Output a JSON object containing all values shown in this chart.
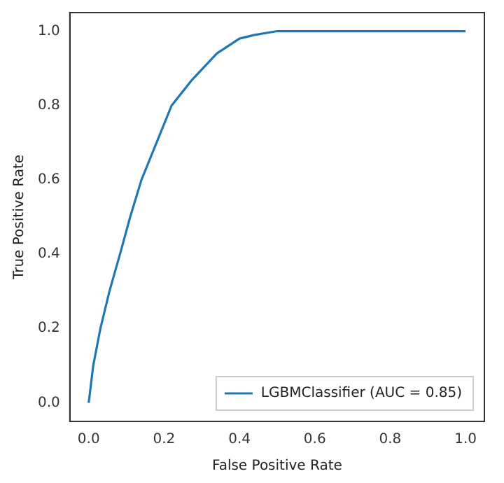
{
  "chart_data": {
    "type": "line",
    "xlabel": "False Positive Rate",
    "ylabel": "True Positive Rate",
    "xlim": [
      -0.05,
      1.05
    ],
    "ylim": [
      -0.05,
      1.05
    ],
    "xticks": [
      {
        "value": 0,
        "label": "0.0"
      },
      0.2,
      0.4,
      0.6,
      0.8,
      {
        "value": 1,
        "label": "1.0"
      }
    ],
    "yticks": [
      {
        "value": 0,
        "label": "0.0"
      },
      0.2,
      0.4,
      0.6,
      0.8,
      {
        "value": 1,
        "label": "1.0"
      }
    ],
    "grid": false,
    "legend": "bottom right",
    "marker": "none",
    "line_style": "solid",
    "series": [
      {
        "name": "LGBMClassifier (AUC = 0.85)",
        "color": "#1f77b4",
        "x": [
          0,
          0.012,
          0.031,
          0.055,
          0.083,
          0.11,
          0.14,
          0.18,
          0.22,
          0.275,
          0.34,
          0.4,
          0.44,
          0.5,
          1
        ],
        "values": [
          0,
          0.1,
          0.2,
          0.3,
          0.4,
          0.5,
          0.6,
          0.7,
          0.8,
          0.87,
          0.94,
          0.98,
          0.99,
          1,
          1
        ]
      }
    ]
  }
}
